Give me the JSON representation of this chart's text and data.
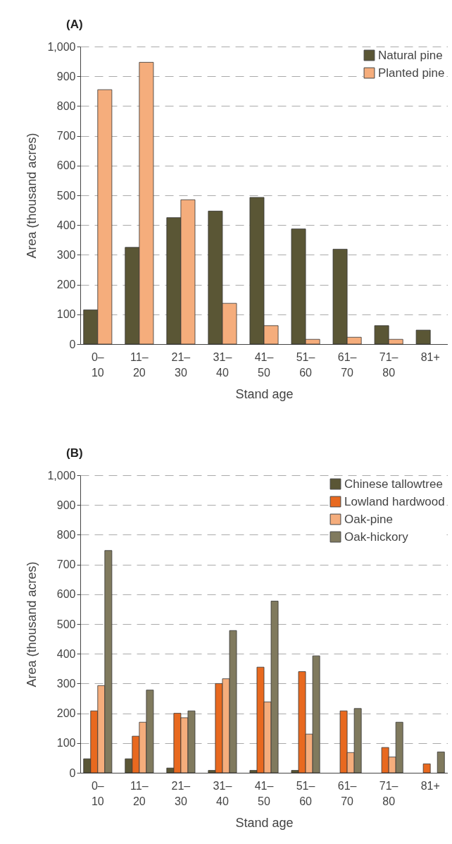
{
  "chart_data": [
    {
      "type": "bar",
      "title": "(A)",
      "xlabel": "Stand age",
      "ylabel": "Area (thousand acres)",
      "categories": [
        "0–10",
        "11–20",
        "21–30",
        "31–40",
        "41–50",
        "51–60",
        "61–70",
        "71–80",
        "81+"
      ],
      "series": [
        {
          "name": "Natural pine",
          "color": "#5a5635",
          "values": [
            115,
            325,
            425,
            447,
            493,
            387,
            319,
            62,
            47
          ]
        },
        {
          "name": "Planted pine",
          "color": "#f5ad7c",
          "values": [
            855,
            947,
            485,
            137,
            62,
            16,
            23,
            16,
            null
          ]
        }
      ],
      "ylim": [
        0,
        1000
      ],
      "yticks": [
        0,
        100,
        200,
        300,
        400,
        500,
        600,
        700,
        800,
        900,
        {
          "value": 1000,
          "label": "1,000"
        }
      ],
      "grid": "y",
      "legend": "top right"
    },
    {
      "type": "bar",
      "title": "(B)",
      "xlabel": "Stand age",
      "ylabel": "Area (thousand acres)",
      "categories": [
        "0–10",
        "11–20",
        "21–30",
        "31–40",
        "41–50",
        "51–60",
        "61–70",
        "71–80",
        "81+"
      ],
      "series": [
        {
          "name": "Chinese tallowtree",
          "color": "#5a5635",
          "values": [
            47,
            47,
            16,
            8,
            8,
            8,
            null,
            null,
            null
          ]
        },
        {
          "name": "Lowland hardwood",
          "color": "#e8691f",
          "values": [
            208,
            123,
            200,
            300,
            355,
            340,
            208,
            85,
            30
          ]
        },
        {
          "name": "Oak-pine",
          "color": "#f5ad7c",
          "values": [
            293,
            170,
            185,
            316,
            238,
            130,
            68,
            53,
            null
          ]
        },
        {
          "name": "Oak-hickory",
          "color": "#807a5e",
          "values": [
            747,
            278,
            208,
            478,
            577,
            393,
            216,
            170,
            70
          ]
        }
      ],
      "ylim": [
        0,
        1000
      ],
      "yticks": [
        0,
        100,
        200,
        300,
        400,
        500,
        600,
        700,
        800,
        900,
        {
          "value": 1000,
          "label": "1,000"
        }
      ],
      "grid": "y",
      "legend": "top right"
    }
  ]
}
